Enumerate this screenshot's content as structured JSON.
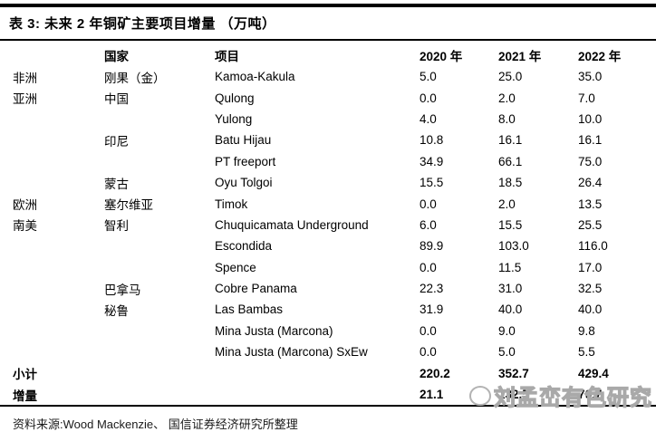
{
  "title": "表 3:  未来 2 年铜矿主要项目增量 （万吨）",
  "source": "资料来源:Wood Mackenzie、 国信证券经济研究所整理",
  "watermark": "刘孟峦有色研究",
  "table": {
    "headers": {
      "region": "",
      "country": "国家",
      "project": "项目",
      "y2020": "2020 年",
      "y2021": "2021 年",
      "y2022": "2022 年"
    },
    "rows": [
      {
        "region": "非洲",
        "country": "刚果（金）",
        "project": "Kamoa-Kakula",
        "y2020": "5.0",
        "y2021": "25.0",
        "y2022": "35.0"
      },
      {
        "region": "亚洲",
        "country": "中国",
        "project": "Qulong",
        "y2020": "0.0",
        "y2021": "2.0",
        "y2022": "7.0"
      },
      {
        "region": "",
        "country": "",
        "project": "Yulong",
        "y2020": "4.0",
        "y2021": "8.0",
        "y2022": "10.0"
      },
      {
        "region": "",
        "country": "印尼",
        "project": "Batu Hijau",
        "y2020": "10.8",
        "y2021": "16.1",
        "y2022": "16.1"
      },
      {
        "region": "",
        "country": "",
        "project": "PT freeport",
        "y2020": "34.9",
        "y2021": "66.1",
        "y2022": "75.0"
      },
      {
        "region": "",
        "country": "蒙古",
        "project": "Oyu Tolgoi",
        "y2020": "15.5",
        "y2021": "18.5",
        "y2022": "26.4"
      },
      {
        "region": "欧洲",
        "country": "塞尔维亚",
        "project": "Timok",
        "y2020": "0.0",
        "y2021": "2.0",
        "y2022": "13.5"
      },
      {
        "region": "南美",
        "country": "智利",
        "project": "Chuquicamata Underground",
        "y2020": "6.0",
        "y2021": "15.5",
        "y2022": "25.5"
      },
      {
        "region": "",
        "country": "",
        "project": "Escondida",
        "y2020": "89.9",
        "y2021": "103.0",
        "y2022": "116.0"
      },
      {
        "region": "",
        "country": "",
        "project": "Spence",
        "y2020": "0.0",
        "y2021": "11.5",
        "y2022": "17.0"
      },
      {
        "region": "",
        "country": "巴拿马",
        "project": "Cobre Panama",
        "y2020": "22.3",
        "y2021": "31.0",
        "y2022": "32.5"
      },
      {
        "region": "",
        "country": "秘鲁",
        "project": "Las Bambas",
        "y2020": "31.9",
        "y2021": "40.0",
        "y2022": "40.0"
      },
      {
        "region": "",
        "country": "",
        "project": "Mina Justa (Marcona)",
        "y2020": "0.0",
        "y2021": "9.0",
        "y2022": "9.8"
      },
      {
        "region": "",
        "country": "",
        "project": "Mina Justa (Marcona) SxEw",
        "y2020": "0.0",
        "y2021": "5.0",
        "y2022": "5.5"
      }
    ],
    "subtotal": {
      "label": "小计",
      "y2020": "220.2",
      "y2021": "352.7",
      "y2022": "429.4"
    },
    "increment": {
      "label": "增量",
      "y2020": "21.1",
      "y2021": "132.5",
      "y2022": "76.7"
    }
  }
}
